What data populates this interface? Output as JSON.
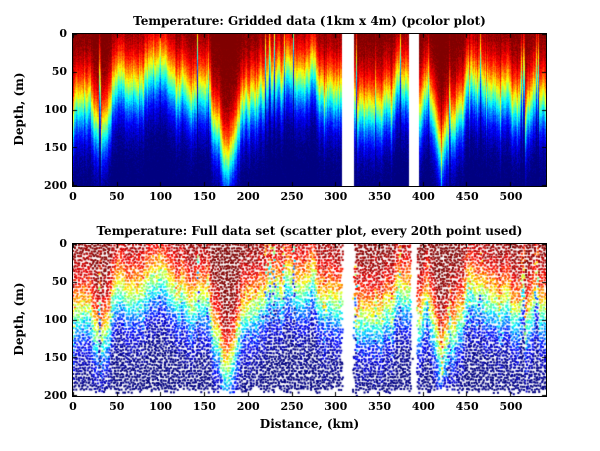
{
  "colors": {
    "background": "#ffffff",
    "text": "#000000",
    "colormap": "jet"
  },
  "chart_data": [
    {
      "type": "heatmap",
      "title": "Temperature: Gridded data (1km x 4m) (pcolor plot)",
      "ylabel": "Depth, (m)",
      "xlabel": "",
      "xlim": [
        0,
        540
      ],
      "ylim": [
        0,
        200
      ],
      "y_reversed": true,
      "grid": false,
      "colormap": "jet",
      "cell_size": "1km x 4m",
      "xticks": [
        0,
        50,
        100,
        150,
        200,
        250,
        300,
        350,
        400,
        450,
        500
      ],
      "yticks": [
        0,
        50,
        100,
        150,
        200
      ],
      "gaps_km": [
        [
          307,
          321
        ],
        [
          384,
          395
        ]
      ]
    },
    {
      "type": "scatter",
      "title": "Temperature: Full data set (scatter plot, every 20th point used)",
      "ylabel": "Depth, (m)",
      "xlabel": "Distance, (km)",
      "xlim": [
        0,
        540
      ],
      "ylim": [
        0,
        200
      ],
      "y_reversed": true,
      "grid": false,
      "colormap": "jet",
      "subsampling": "every 20th point",
      "xticks": [
        0,
        50,
        100,
        150,
        200,
        250,
        300,
        350,
        400,
        450,
        500
      ],
      "yticks": [
        0,
        50,
        100,
        150,
        200
      ],
      "gaps_km": [
        [
          307,
          321
        ],
        [
          386,
          393
        ]
      ]
    }
  ],
  "field_model": {
    "description": "Warm (red) surface layer over cold (blue) deep water; thermocline depth estimated along the section, jet colormap, same field in both panels",
    "transition_width_m": 26,
    "thermocline_depth_points": [
      [
        0,
        108
      ],
      [
        30,
        102
      ],
      [
        45,
        78
      ],
      [
        52,
        50
      ],
      [
        60,
        70
      ],
      [
        72,
        62
      ],
      [
        85,
        58
      ],
      [
        100,
        66
      ],
      [
        112,
        56
      ],
      [
        125,
        60
      ],
      [
        138,
        68
      ],
      [
        150,
        88
      ],
      [
        162,
        115
      ],
      [
        172,
        148
      ],
      [
        180,
        140
      ],
      [
        190,
        115
      ],
      [
        200,
        95
      ],
      [
        212,
        84
      ],
      [
        225,
        72
      ],
      [
        238,
        64
      ],
      [
        252,
        58
      ],
      [
        265,
        62
      ],
      [
        278,
        58
      ],
      [
        290,
        66
      ],
      [
        300,
        74
      ],
      [
        308,
        80
      ],
      [
        320,
        84
      ],
      [
        332,
        78
      ],
      [
        342,
        86
      ],
      [
        352,
        98
      ],
      [
        362,
        88
      ],
      [
        374,
        78
      ],
      [
        384,
        82
      ],
      [
        396,
        96
      ],
      [
        406,
        106
      ],
      [
        416,
        120
      ],
      [
        426,
        140
      ],
      [
        436,
        116
      ],
      [
        448,
        94
      ],
      [
        460,
        86
      ],
      [
        472,
        82
      ],
      [
        486,
        78
      ],
      [
        498,
        84
      ],
      [
        510,
        92
      ],
      [
        524,
        96
      ],
      [
        540,
        104
      ]
    ]
  }
}
